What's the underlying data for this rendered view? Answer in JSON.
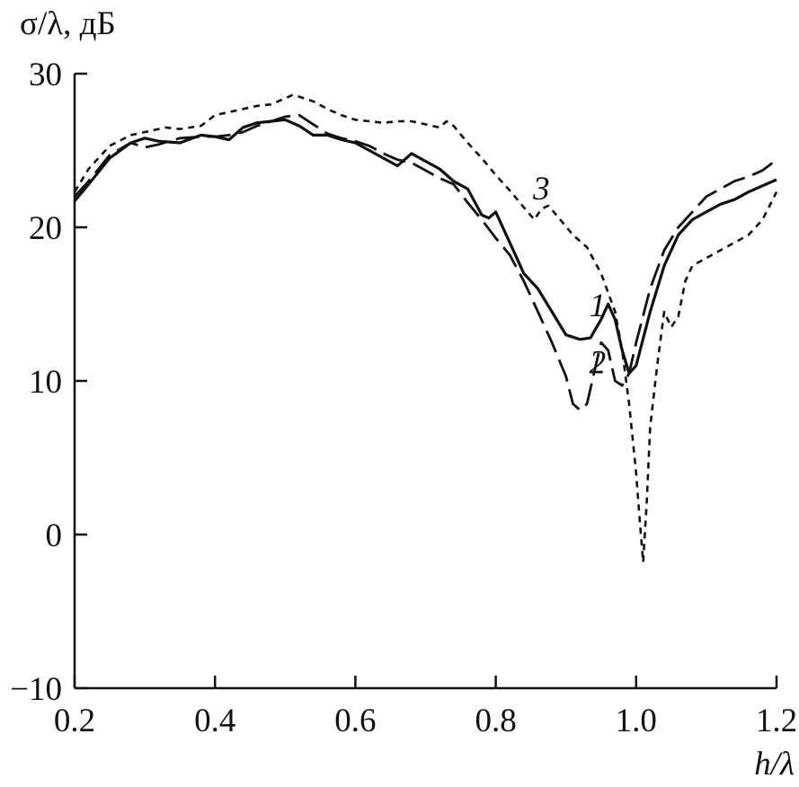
{
  "chart_data": {
    "type": "line",
    "xlabel": "h/λ",
    "ylabel": "σ/λ, дБ",
    "xlim": [
      0.2,
      1.2
    ],
    "ylim": [
      -10,
      30
    ],
    "xticks": [
      0.2,
      0.4,
      0.6,
      0.8,
      1.0,
      1.2
    ],
    "xtick_labels": [
      "0.2",
      "0.4",
      "0.6",
      "0.8",
      "1.0",
      "1.2"
    ],
    "yticks": [
      -10,
      0,
      10,
      20,
      30
    ],
    "ytick_labels": [
      "−10",
      "0",
      "10",
      "20",
      "30"
    ],
    "grid": false,
    "legend": "none",
    "series": [
      {
        "label": "1",
        "style": "solid",
        "label_pos": [
          0.945,
          14.2
        ],
        "x": [
          0.2,
          0.22,
          0.25,
          0.28,
          0.3,
          0.32,
          0.35,
          0.38,
          0.4,
          0.42,
          0.44,
          0.46,
          0.48,
          0.5,
          0.52,
          0.54,
          0.56,
          0.58,
          0.6,
          0.62,
          0.64,
          0.66,
          0.68,
          0.7,
          0.72,
          0.74,
          0.76,
          0.78,
          0.79,
          0.8,
          0.82,
          0.84,
          0.86,
          0.88,
          0.9,
          0.92,
          0.935,
          0.95,
          0.96,
          0.97,
          0.98,
          0.99,
          1.0,
          1.02,
          1.04,
          1.06,
          1.08,
          1.1,
          1.12,
          1.14,
          1.16,
          1.18,
          1.2
        ],
        "y": [
          21.7,
          22.8,
          24.5,
          25.5,
          25.8,
          25.6,
          25.5,
          26.0,
          25.9,
          25.7,
          26.5,
          26.8,
          26.9,
          27.0,
          26.6,
          26.0,
          26.0,
          25.7,
          25.5,
          25.0,
          24.5,
          24.0,
          24.8,
          24.3,
          23.8,
          23.0,
          22.5,
          20.8,
          20.6,
          21.0,
          19.0,
          17.0,
          16.0,
          14.5,
          13.0,
          12.7,
          12.8,
          14.0,
          15.0,
          14.0,
          12.0,
          10.5,
          11.0,
          14.5,
          17.5,
          19.5,
          20.5,
          21.0,
          21.5,
          21.8,
          22.3,
          22.7,
          23.1
        ]
      },
      {
        "label": "2",
        "style": "dashed",
        "label_pos": [
          0.945,
          10.5
        ],
        "x": [
          0.2,
          0.22,
          0.25,
          0.28,
          0.3,
          0.32,
          0.35,
          0.38,
          0.4,
          0.42,
          0.44,
          0.46,
          0.48,
          0.5,
          0.52,
          0.54,
          0.56,
          0.58,
          0.6,
          0.62,
          0.64,
          0.66,
          0.68,
          0.7,
          0.72,
          0.74,
          0.76,
          0.78,
          0.8,
          0.82,
          0.84,
          0.86,
          0.88,
          0.9,
          0.91,
          0.92,
          0.93,
          0.94,
          0.95,
          0.96,
          0.97,
          0.98,
          0.99,
          1.0,
          1.02,
          1.04,
          1.06,
          1.08,
          1.1,
          1.12,
          1.14,
          1.16,
          1.18,
          1.2
        ],
        "y": [
          22.0,
          23.0,
          24.7,
          25.5,
          25.2,
          25.4,
          25.8,
          25.9,
          25.9,
          26.0,
          26.2,
          26.6,
          26.9,
          27.2,
          27.3,
          26.7,
          26.1,
          25.8,
          25.6,
          25.3,
          24.8,
          24.4,
          24.2,
          23.7,
          23.2,
          22.8,
          21.6,
          20.5,
          19.3,
          18.2,
          16.5,
          14.5,
          12.5,
          10.3,
          8.5,
          8.1,
          8.5,
          10.5,
          12.5,
          12.0,
          10.0,
          9.7,
          10.5,
          12.5,
          16.0,
          18.5,
          20.0,
          21.0,
          22.0,
          22.5,
          23.0,
          23.3,
          23.7,
          24.4
        ]
      },
      {
        "label": "3",
        "style": "dotted",
        "label_pos": [
          0.865,
          21.8
        ],
        "x": [
          0.2,
          0.22,
          0.25,
          0.28,
          0.3,
          0.33,
          0.35,
          0.38,
          0.4,
          0.42,
          0.44,
          0.46,
          0.48,
          0.5,
          0.51,
          0.52,
          0.54,
          0.56,
          0.58,
          0.6,
          0.62,
          0.64,
          0.66,
          0.68,
          0.7,
          0.72,
          0.73,
          0.74,
          0.76,
          0.78,
          0.8,
          0.82,
          0.84,
          0.855,
          0.865,
          0.875,
          0.89,
          0.91,
          0.93,
          0.95,
          0.97,
          0.98,
          0.99,
          1.0,
          1.005,
          1.01,
          1.015,
          1.02,
          1.03,
          1.04,
          1.05,
          1.06,
          1.07,
          1.08,
          1.1,
          1.12,
          1.14,
          1.16,
          1.18,
          1.2
        ],
        "y": [
          22.3,
          23.8,
          25.3,
          26.0,
          26.2,
          26.5,
          26.4,
          26.6,
          27.3,
          27.5,
          27.7,
          27.9,
          28.0,
          28.4,
          28.6,
          28.5,
          28.2,
          27.7,
          27.3,
          27.0,
          26.9,
          26.8,
          26.9,
          26.9,
          26.7,
          26.5,
          26.9,
          26.6,
          25.5,
          24.5,
          23.4,
          22.4,
          21.3,
          20.5,
          21.2,
          21.4,
          20.6,
          19.5,
          18.7,
          17.0,
          14.5,
          12.0,
          8.5,
          4.0,
          1.0,
          -1.8,
          2.0,
          7.0,
          11.0,
          14.5,
          13.5,
          14.2,
          16.5,
          17.5,
          18.0,
          18.5,
          19.0,
          19.5,
          20.5,
          22.3
        ]
      }
    ]
  }
}
